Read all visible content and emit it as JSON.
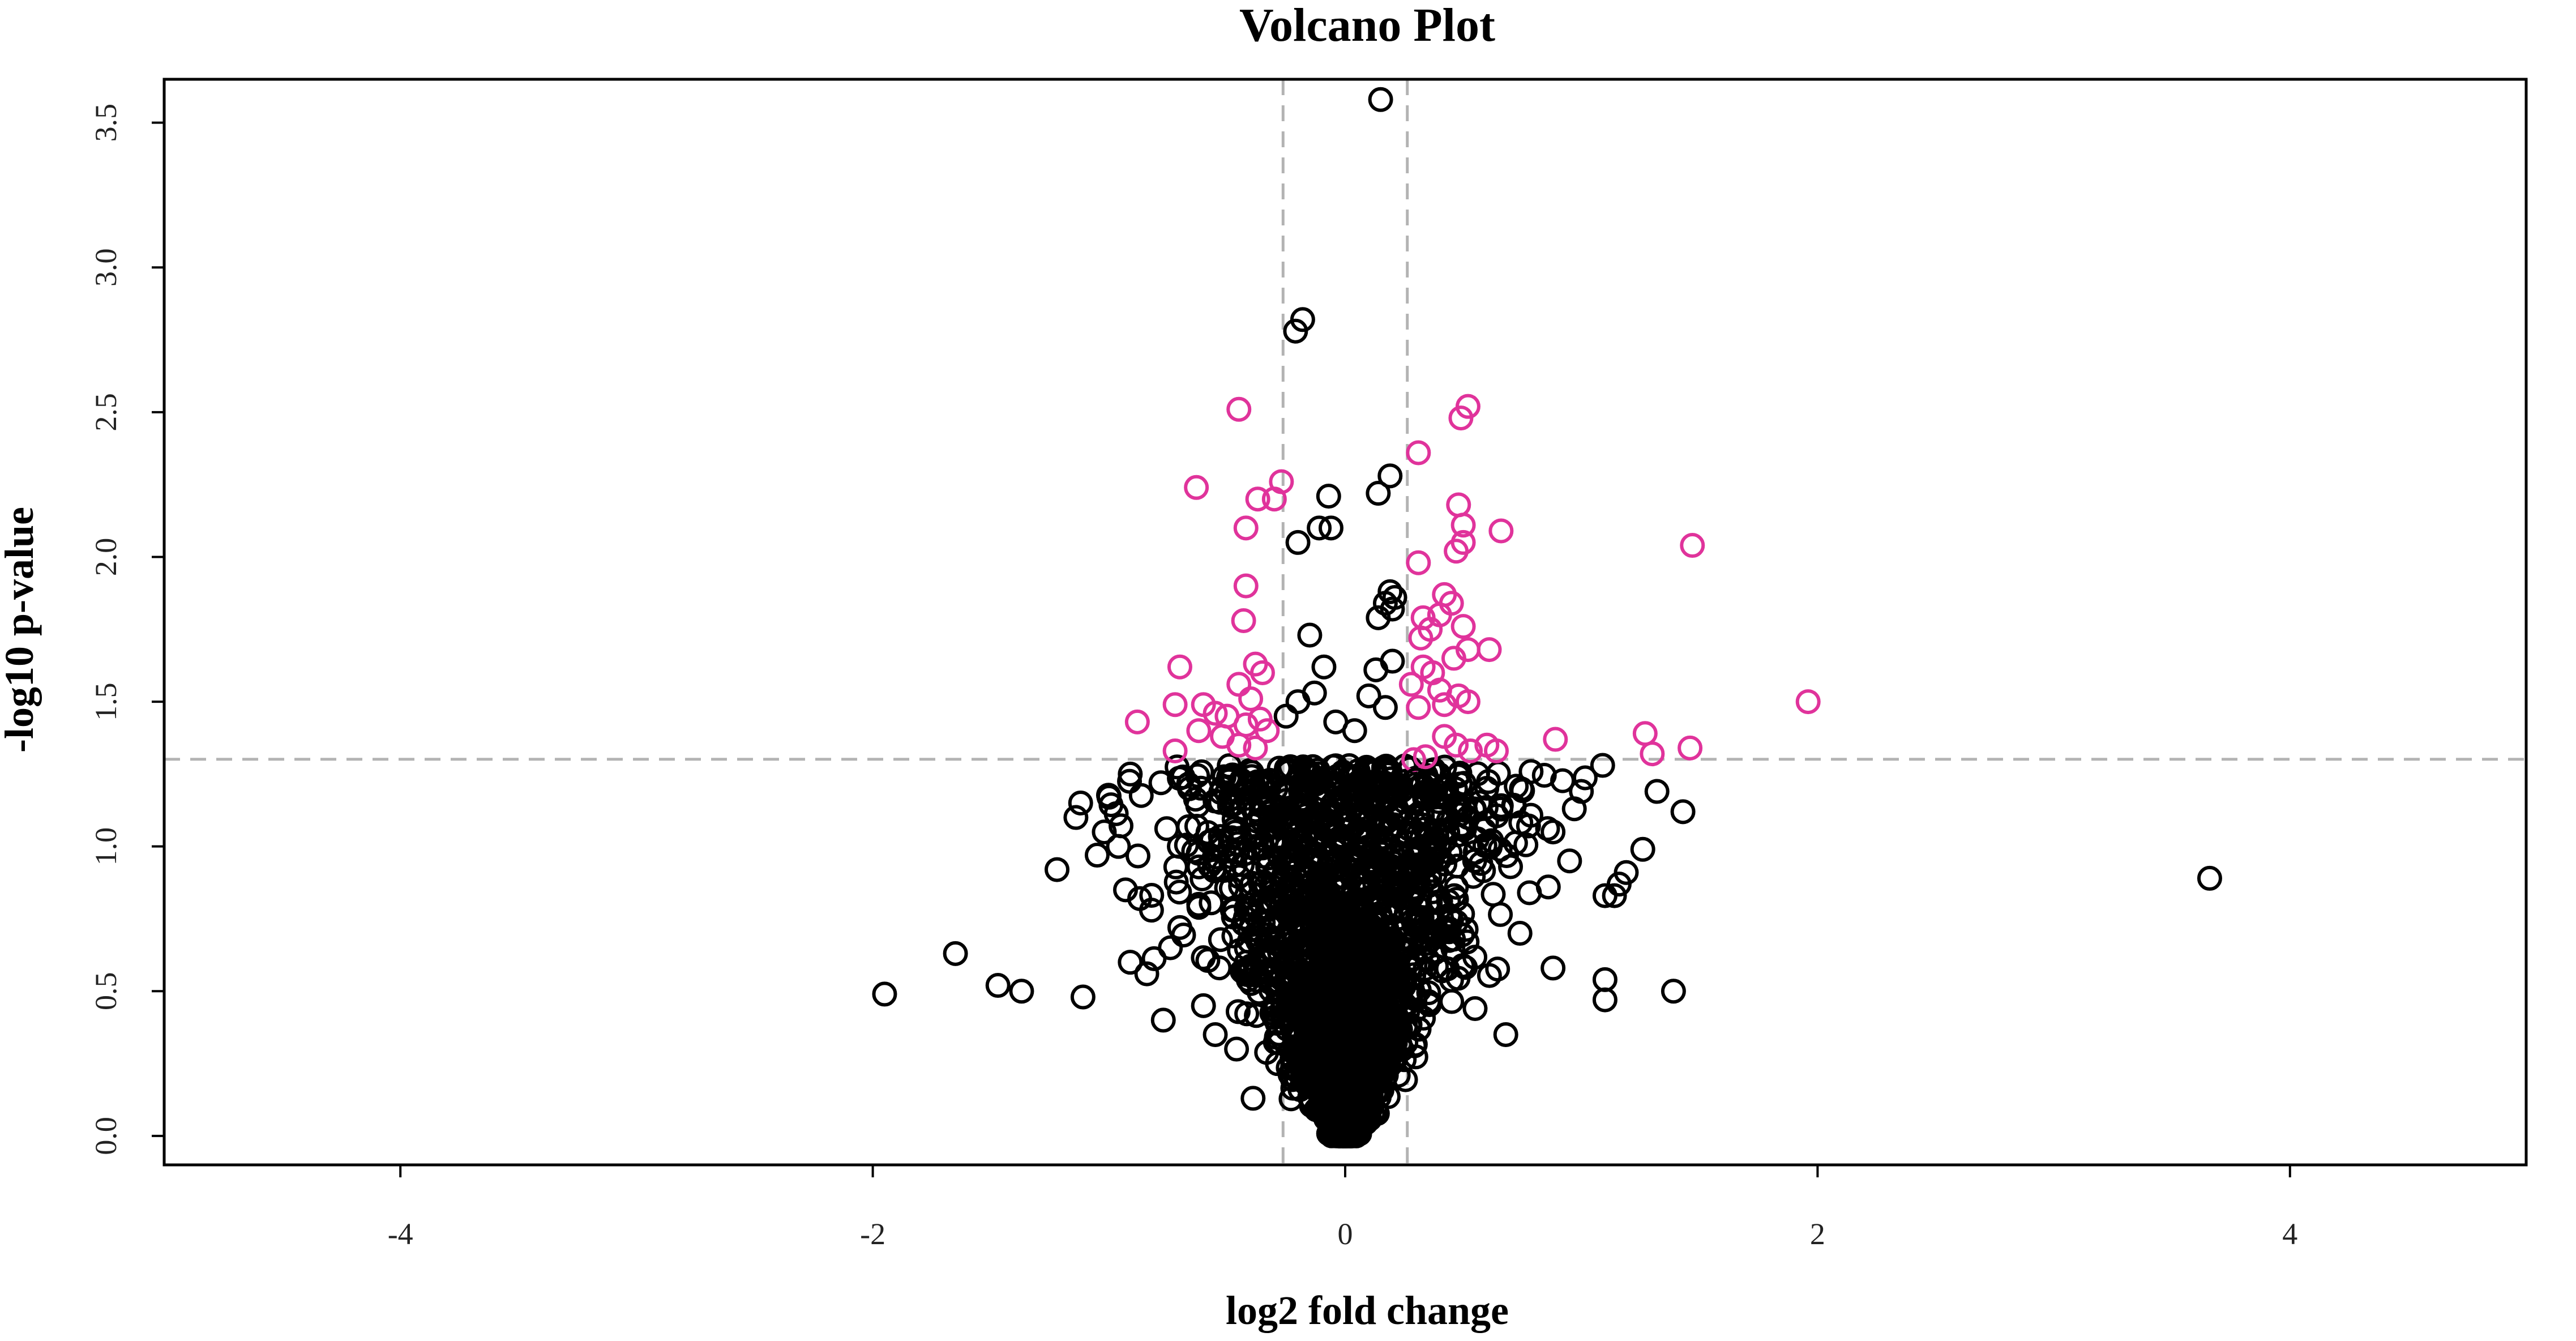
{
  "chart_data": {
    "type": "scatter",
    "title": "Volcano Plot",
    "xlabel": "log2 fold change",
    "ylabel": "-log10 p-value",
    "xlim": [
      -5,
      5
    ],
    "ylim": [
      -0.1,
      3.65
    ],
    "xticks": [
      -4,
      -2,
      0,
      2,
      4
    ],
    "yticks": [
      0.0,
      0.5,
      1.0,
      1.5,
      2.0,
      2.5,
      3.0,
      3.5
    ],
    "xtick_labels": [
      "-4",
      "-2",
      "0",
      "2",
      "4"
    ],
    "ytick_labels": [
      "0.0",
      "0.5",
      "1.0",
      "1.5",
      "2.0",
      "2.5",
      "3.0",
      "3.5"
    ],
    "thresholds": {
      "x": [
        -0.263,
        0.263
      ],
      "y": 1.301
    },
    "grid": false,
    "colors": {
      "significant": "#e0339b",
      "not_significant": "#000000",
      "threshold": "#b3b3b3"
    },
    "dense_cloud": {
      "count": 2600,
      "description_hidden": true
    },
    "series": [
      {
        "color_key": "significant",
        "points": [
          [
            -0.45,
            2.51
          ],
          [
            -0.63,
            2.24
          ],
          [
            -0.27,
            2.26
          ],
          [
            -0.37,
            2.2
          ],
          [
            -0.3,
            2.2
          ],
          [
            -0.42,
            2.1
          ],
          [
            -0.42,
            1.9
          ],
          [
            -0.43,
            1.78
          ],
          [
            -0.7,
            1.62
          ],
          [
            -0.38,
            1.63
          ],
          [
            -0.35,
            1.6
          ],
          [
            -0.45,
            1.56
          ],
          [
            -0.4,
            1.51
          ],
          [
            -0.6,
            1.49
          ],
          [
            -0.55,
            1.46
          ],
          [
            -0.5,
            1.45
          ],
          [
            -0.36,
            1.44
          ],
          [
            -0.42,
            1.42
          ],
          [
            -0.62,
            1.4
          ],
          [
            -0.72,
            1.49
          ],
          [
            -0.88,
            1.43
          ],
          [
            -0.72,
            1.33
          ],
          [
            -0.33,
            1.4
          ],
          [
            -0.45,
            1.35
          ],
          [
            -0.38,
            1.34
          ],
          [
            -0.52,
            1.38
          ],
          [
            0.52,
            2.52
          ],
          [
            0.49,
            2.48
          ],
          [
            0.31,
            2.36
          ],
          [
            0.48,
            2.18
          ],
          [
            0.5,
            2.11
          ],
          [
            0.66,
            2.09
          ],
          [
            0.5,
            2.05
          ],
          [
            0.47,
            2.02
          ],
          [
            0.31,
            1.98
          ],
          [
            0.42,
            1.87
          ],
          [
            0.45,
            1.84
          ],
          [
            0.4,
            1.8
          ],
          [
            0.33,
            1.79
          ],
          [
            0.36,
            1.75
          ],
          [
            0.5,
            1.76
          ],
          [
            0.32,
            1.72
          ],
          [
            0.52,
            1.68
          ],
          [
            0.61,
            1.68
          ],
          [
            0.46,
            1.65
          ],
          [
            0.33,
            1.62
          ],
          [
            0.37,
            1.6
          ],
          [
            0.28,
            1.56
          ],
          [
            0.4,
            1.54
          ],
          [
            0.48,
            1.52
          ],
          [
            0.52,
            1.5
          ],
          [
            0.42,
            1.49
          ],
          [
            0.31,
            1.48
          ],
          [
            0.42,
            1.38
          ],
          [
            0.47,
            1.35
          ],
          [
            0.53,
            1.33
          ],
          [
            0.64,
            1.33
          ],
          [
            0.6,
            1.35
          ],
          [
            0.34,
            1.31
          ],
          [
            0.29,
            1.3
          ],
          [
            0.89,
            1.37
          ],
          [
            1.27,
            1.39
          ],
          [
            1.3,
            1.32
          ],
          [
            1.46,
            1.34
          ],
          [
            1.96,
            1.5
          ],
          [
            1.47,
            2.04
          ]
        ]
      },
      {
        "color_key": "not_significant",
        "points": [
          [
            0.15,
            3.58
          ],
          [
            -0.18,
            2.82
          ],
          [
            -0.21,
            2.78
          ],
          [
            -0.07,
            2.21
          ],
          [
            0.19,
            2.28
          ],
          [
            0.14,
            2.22
          ],
          [
            -0.11,
            2.1
          ],
          [
            -0.06,
            2.1
          ],
          [
            -0.2,
            2.05
          ],
          [
            0.19,
            1.88
          ],
          [
            0.21,
            1.86
          ],
          [
            0.17,
            1.84
          ],
          [
            0.2,
            1.82
          ],
          [
            0.14,
            1.79
          ],
          [
            -0.15,
            1.73
          ],
          [
            0.04,
            1.4
          ],
          [
            -0.13,
            1.53
          ],
          [
            -0.2,
            1.5
          ],
          [
            -0.25,
            1.45
          ],
          [
            0.1,
            1.52
          ],
          [
            0.17,
            1.48
          ],
          [
            0.13,
            1.61
          ],
          [
            0.2,
            1.64
          ],
          [
            -0.09,
            1.62
          ],
          [
            -0.04,
            1.43
          ],
          [
            -0.78,
            1.22
          ],
          [
            -0.91,
            1.25
          ],
          [
            -1.0,
            1.17
          ],
          [
            -1.12,
            1.15
          ],
          [
            -1.14,
            1.1
          ],
          [
            -1.02,
            1.05
          ],
          [
            -0.96,
            1.0
          ],
          [
            -1.05,
            0.97
          ],
          [
            -1.22,
            0.92
          ],
          [
            -0.93,
            0.85
          ],
          [
            -0.87,
            0.82
          ],
          [
            -0.82,
            0.78
          ],
          [
            -0.74,
            0.65
          ],
          [
            -0.91,
            0.6
          ],
          [
            -0.84,
            0.56
          ],
          [
            -0.77,
            0.4
          ],
          [
            -1.65,
            0.63
          ],
          [
            -1.47,
            0.52
          ],
          [
            -1.37,
            0.5
          ],
          [
            -1.11,
            0.48
          ],
          [
            -1.95,
            0.49
          ],
          [
            -0.6,
            0.45
          ],
          [
            -0.55,
            0.35
          ],
          [
            -0.46,
            0.3
          ],
          [
            -0.39,
            0.13
          ],
          [
            0.68,
            0.35
          ],
          [
            0.55,
            0.44
          ],
          [
            0.88,
            0.58
          ],
          [
            1.0,
            1.19
          ],
          [
            0.97,
            1.13
          ],
          [
            0.88,
            1.05
          ],
          [
            0.95,
            0.95
          ],
          [
            0.86,
            0.86
          ],
          [
            0.74,
            0.7
          ],
          [
            1.09,
            1.28
          ],
          [
            1.32,
            1.19
          ],
          [
            1.43,
            1.12
          ],
          [
            1.19,
            0.91
          ],
          [
            1.16,
            0.87
          ],
          [
            1.1,
            0.83
          ],
          [
            1.26,
            0.99
          ],
          [
            1.14,
            0.83
          ],
          [
            1.1,
            0.54
          ],
          [
            1.1,
            0.47
          ],
          [
            1.39,
            0.5
          ],
          [
            3.66,
            0.89
          ],
          [
            0.3,
            1.23
          ],
          [
            0.41,
            1.17
          ],
          [
            0.52,
            1.1
          ],
          [
            0.62,
            1.02
          ],
          [
            0.7,
            0.93
          ],
          [
            0.78,
            0.84
          ],
          [
            -0.62,
            0.8
          ],
          [
            -0.7,
            0.72
          ]
        ]
      }
    ]
  }
}
